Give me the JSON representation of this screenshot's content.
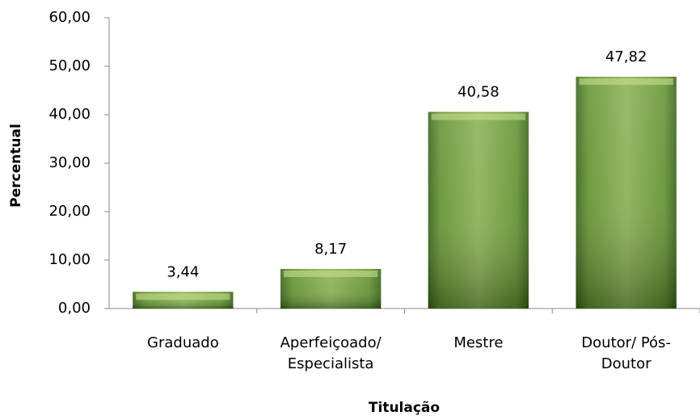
{
  "chart_data": {
    "type": "bar",
    "y_label": "Percentual",
    "x_label": "Titulação",
    "categories": [
      "Graduado",
      "Aperfeiçoado/ Especialista",
      "Mestre",
      "Doutor/ Pós-Doutor"
    ],
    "values": [
      3.44,
      8.17,
      40.58,
      47.82
    ],
    "value_labels": [
      "3,44",
      "8,17",
      "40,58",
      "47,82"
    ],
    "color": "#5e8f2c",
    "ylim": [
      0,
      60
    ],
    "yticks": [
      {
        "value": 0,
        "label": "0,00"
      },
      {
        "value": 10,
        "label": "10,00"
      },
      {
        "value": 20,
        "label": "20,00"
      },
      {
        "value": 30,
        "label": "30,00"
      },
      {
        "value": 40,
        "label": "40,00"
      },
      {
        "value": 50,
        "label": "50,00"
      },
      {
        "value": 60,
        "label": "60,00"
      }
    ],
    "grid": false
  }
}
